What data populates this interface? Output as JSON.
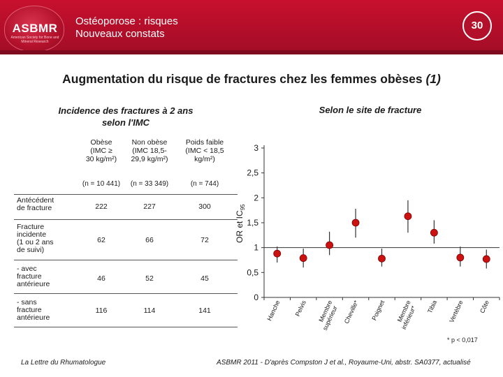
{
  "header": {
    "logo": "ASBMR",
    "logo_sub": "American Society for Bone and Mineral Research",
    "title_line1": "Ostéoporose : risques",
    "title_line2": "Nouveaux constats",
    "slide_number": "30"
  },
  "main_title": "Augmentation du risque de fractures chez les femmes obèses",
  "main_title_ref": "(1)",
  "left_subtitle_line1": "Incidence des fractures à 2 ans",
  "left_subtitle_line2": "selon l'IMC",
  "right_subtitle": "Selon le site de fracture",
  "table": {
    "columns": [
      {
        "line1": "Obèse",
        "line2": "(IMC ≥",
        "line3": "30 kg/m²)",
        "n": "(n = 10 441)"
      },
      {
        "line1": "Non obèse",
        "line2": "(IMC 18,5-",
        "line3": "29,9 kg/m²)",
        "n": "(n = 33 349)"
      },
      {
        "line1": "Poids faible",
        "line2": "(IMC < 18,5",
        "line3": "kg/m²)",
        "n": "(n = 744)"
      }
    ],
    "rows": [
      {
        "label1": "Antécédent",
        "label2": "de fracture",
        "label3": "",
        "label4": "",
        "values": [
          "222",
          "227",
          "300"
        ]
      },
      {
        "label1": "Fracture",
        "label2": "incidente",
        "label3": "(1 ou 2 ans",
        "label4": "de suivi)",
        "values": [
          "62",
          "66",
          "72"
        ]
      },
      {
        "label1": "- avec",
        "label2": "fracture",
        "label3": "antérieure",
        "label4": "",
        "values": [
          "46",
          "52",
          "45"
        ]
      },
      {
        "label1": "- sans",
        "label2": "fracture",
        "label3": "antérieure",
        "label4": "",
        "values": [
          "116",
          "114",
          "141"
        ]
      }
    ]
  },
  "chart_data": {
    "type": "scatter",
    "title": "Selon le site de fracture",
    "ylabel": "OR et IC95",
    "xlabel": "",
    "ylim": [
      0,
      3
    ],
    "yticks": [
      "0",
      "0,5",
      "1",
      "1,5",
      "2",
      "2,5",
      "3"
    ],
    "reference_line": 1,
    "categories": [
      "Hanche",
      "Pelvis",
      "Membre supérieur",
      "Cheville*",
      "Poignet",
      "Membre inférieur*",
      "Tibia",
      "Vertèbre",
      "Côte"
    ],
    "values": [
      0.88,
      0.79,
      1.05,
      1.5,
      0.78,
      1.63,
      1.3,
      0.8,
      0.77
    ],
    "ci_low": [
      0.7,
      0.6,
      0.85,
      1.2,
      0.62,
      1.3,
      1.08,
      0.62,
      0.58
    ],
    "ci_high": [
      1.02,
      0.98,
      1.32,
      1.78,
      0.98,
      1.95,
      1.55,
      1.02,
      0.96
    ],
    "marker_color": "#cc1111"
  },
  "note": "* p < 0,017",
  "footer_left": "La Lettre du Rhumatologue",
  "footer_right": "ASBMR 2011 - D'après Compston J et al., Royaume-Uni, abstr. SA0377, actualisé"
}
